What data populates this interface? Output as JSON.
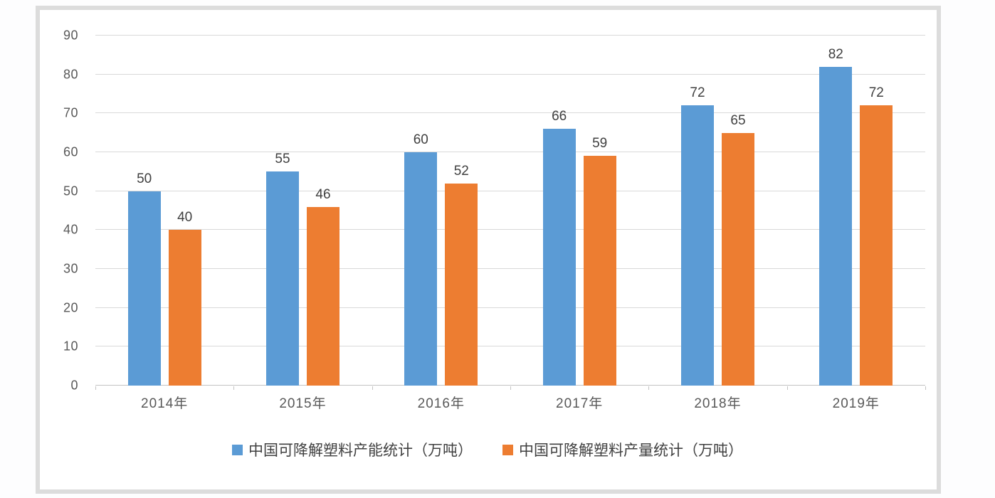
{
  "chart_data": {
    "type": "bar",
    "title": "",
    "xlabel": "",
    "ylabel": "",
    "categories": [
      "2014年",
      "2015年",
      "2016年",
      "2017年",
      "2018年",
      "2019年"
    ],
    "series": [
      {
        "name": "中国可降解塑料产能统计（万吨）",
        "color": "#5B9BD5",
        "values": [
          50,
          55,
          60,
          66,
          72,
          82
        ]
      },
      {
        "name": "中国可降解塑料产量统计（万吨）",
        "color": "#ED7D31",
        "values": [
          40,
          46,
          52,
          59,
          65,
          72
        ]
      }
    ],
    "ylim": [
      0,
      90
    ],
    "ytick_step": 10,
    "grid": true,
    "data_labels": true,
    "legend_position": "bottom"
  },
  "colors": {
    "series_capacity": "#5B9BD5",
    "series_output": "#ED7D31",
    "gridline": "#D9D9D9",
    "axis_text": "#595959",
    "label_text": "#404040",
    "frame_border": "#DCDCDC"
  }
}
